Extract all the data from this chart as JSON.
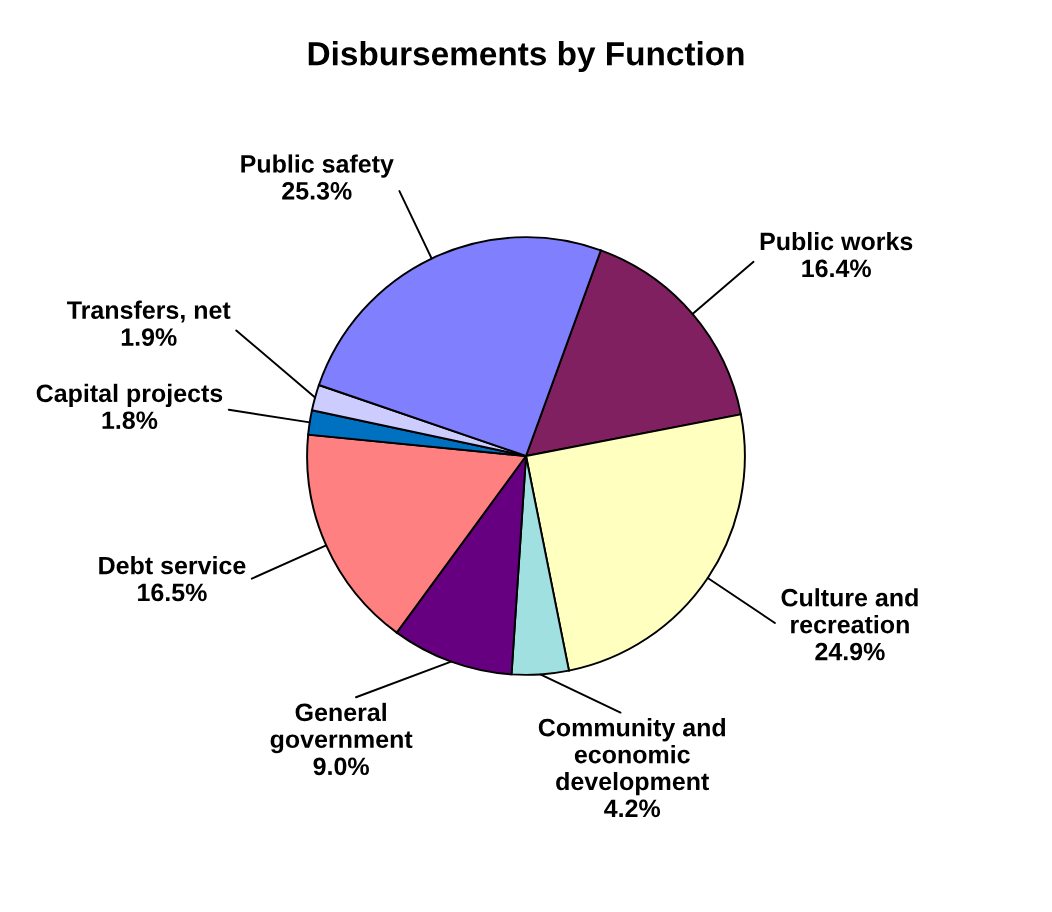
{
  "chart_data": {
    "type": "pie",
    "title": "Disbursements by Function",
    "categories": [
      "Public works",
      "Culture and\nrecreation",
      "Community and\neconomic\ndevelopment",
      "General\ngovernment",
      "Debt service",
      "Capital projects",
      "Transfers, net",
      "Public safety"
    ],
    "values": [
      16.4,
      24.9,
      4.2,
      9.0,
      16.5,
      1.8,
      1.9,
      25.3
    ],
    "value_labels": [
      "16.4%",
      "24.9%",
      "4.2%",
      "9.0%",
      "16.5%",
      "1.8%",
      "1.9%",
      "25.3%"
    ],
    "colors": [
      "#802060",
      "#ffffc0",
      "#a0e0e0",
      "#660080",
      "#ff8080",
      "#0070c0",
      "#ccccff",
      "#8080ff"
    ],
    "legend": false
  }
}
